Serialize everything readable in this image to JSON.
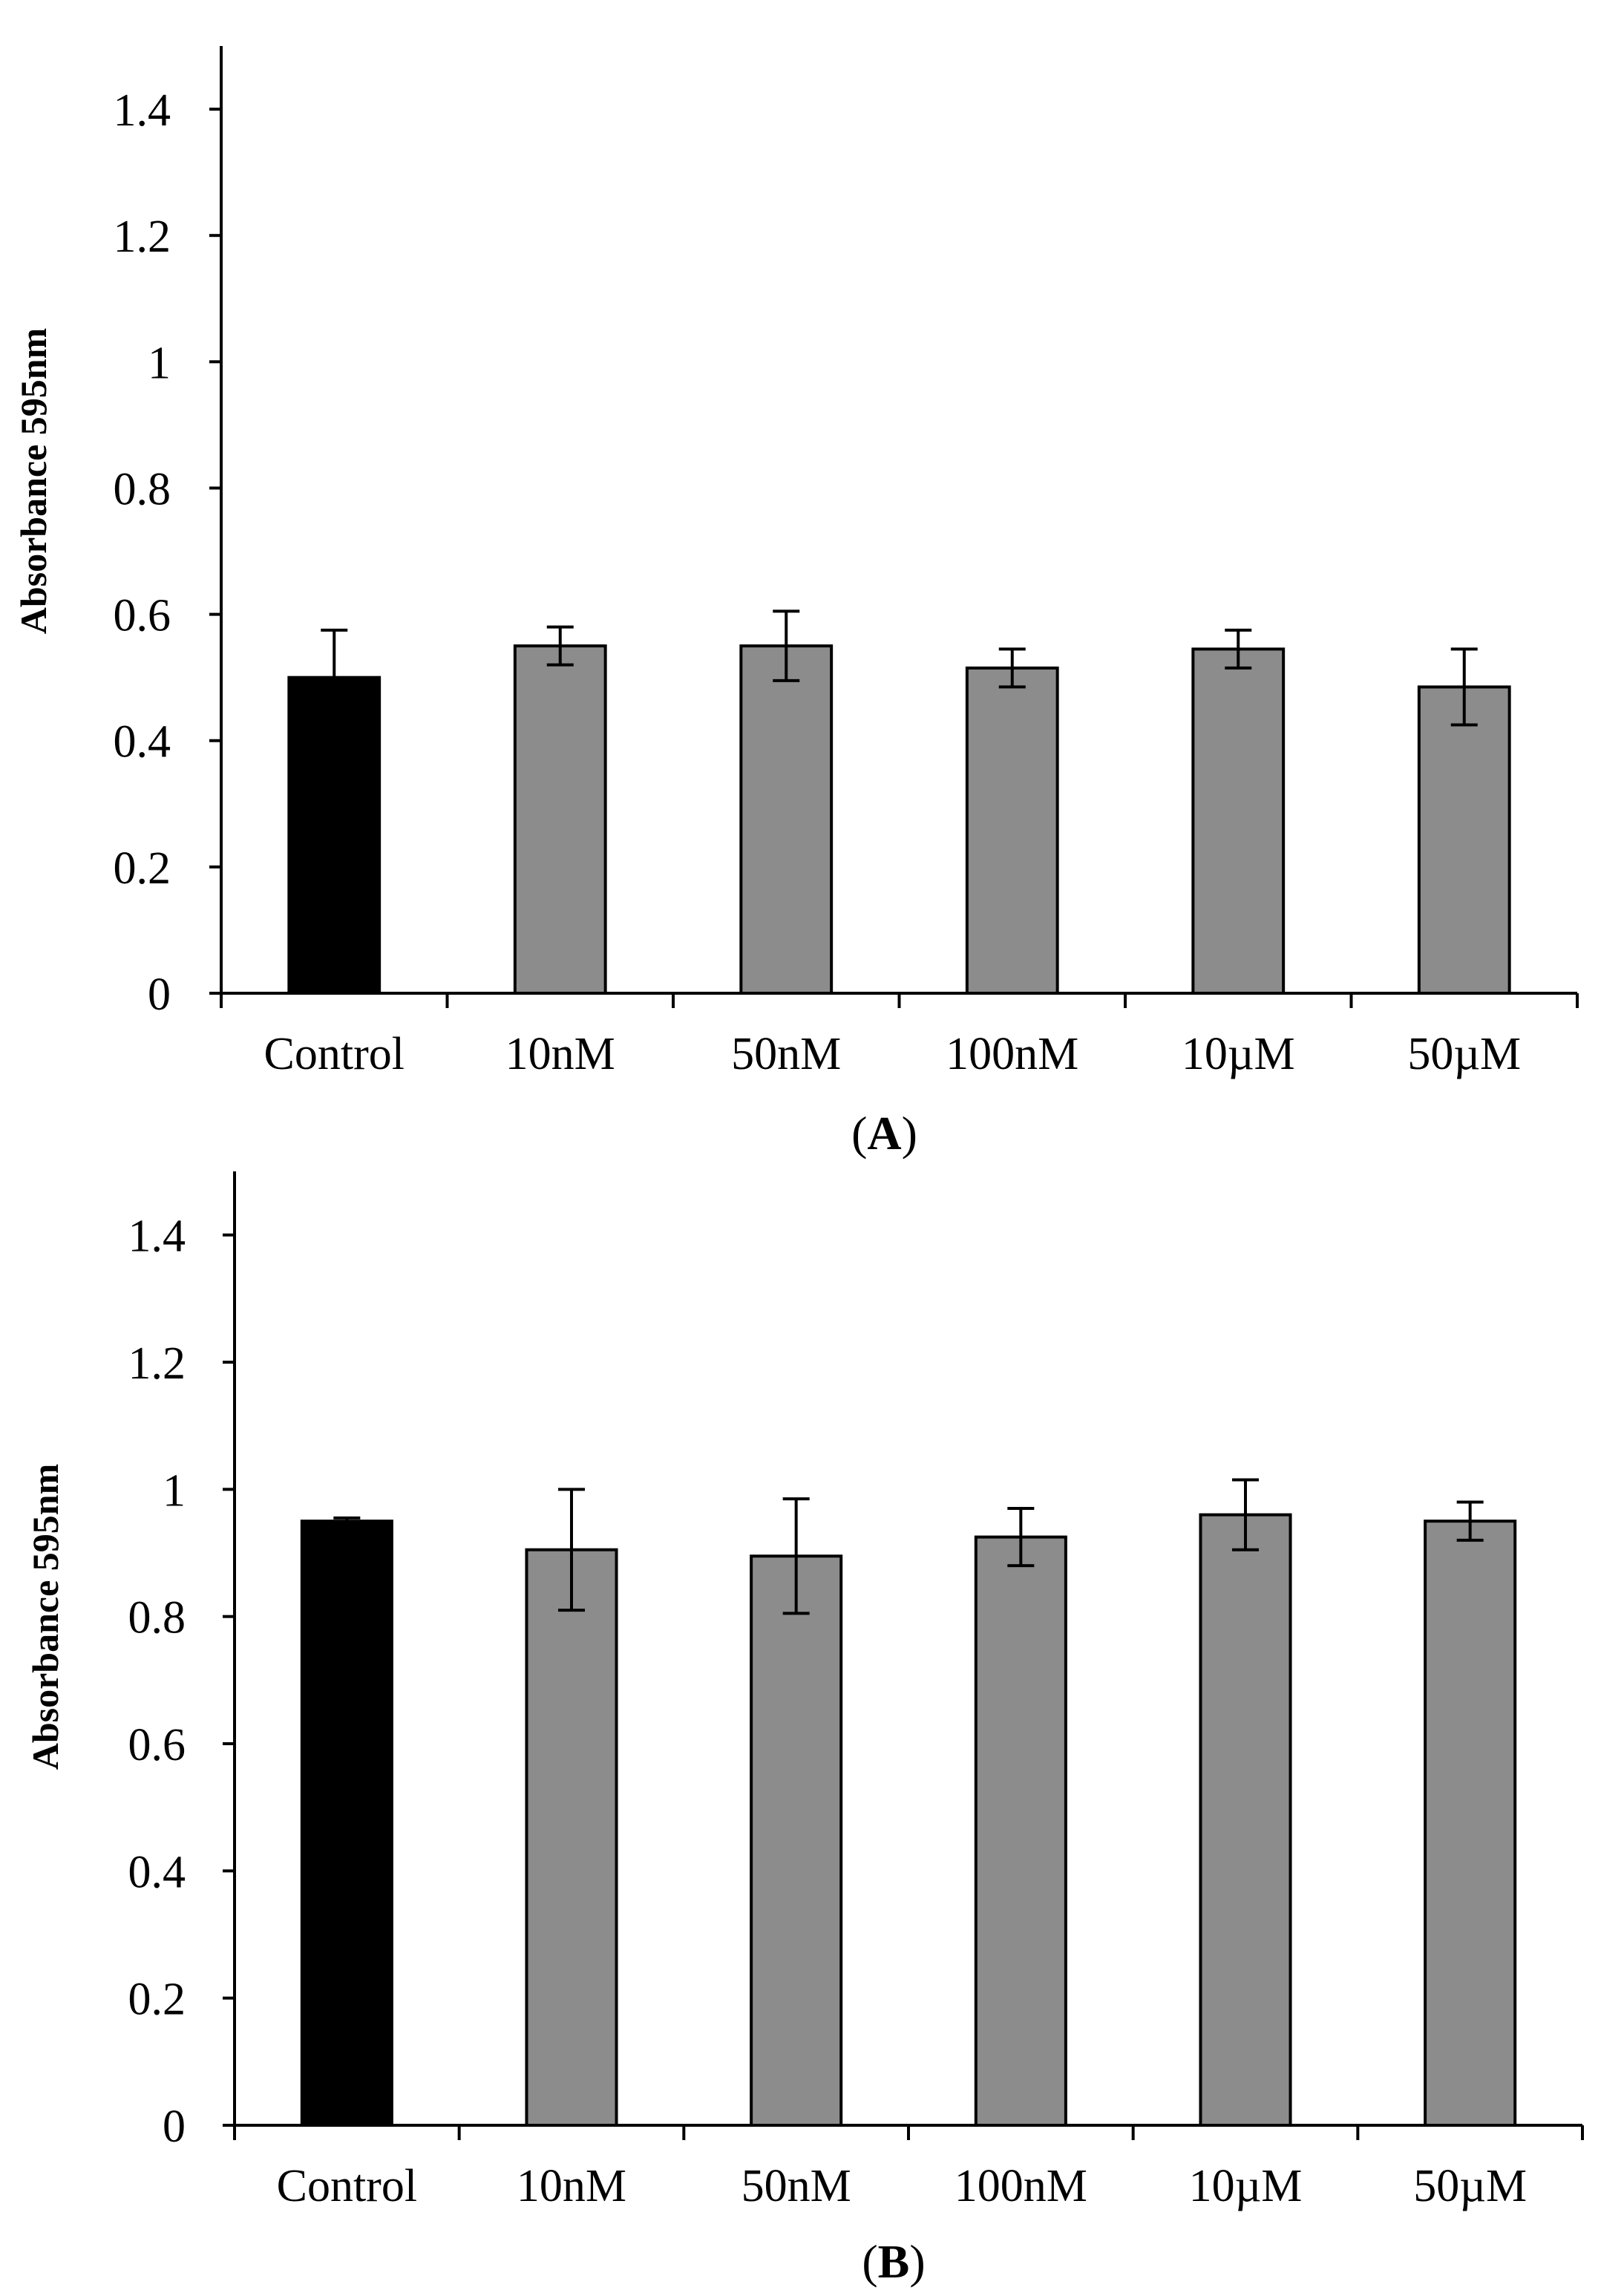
{
  "chart_data": [
    {
      "type": "bar",
      "panel": "A",
      "panel_label_open": "(",
      "panel_label_letter": "A",
      "panel_label_close": ")",
      "ylabel": "Absorbance 595nm",
      "xlabel": "",
      "ylim": [
        0,
        1.5
      ],
      "yticks": [
        0,
        0.2,
        0.4,
        0.6,
        0.8,
        1,
        1.2,
        1.4
      ],
      "ytick_labels": [
        "0",
        "0.2",
        "0.4",
        "0.6",
        "0.8",
        "1",
        "1.2",
        "1.4"
      ],
      "categories": [
        "Control",
        "10nM",
        "50nM",
        "100nM",
        "10µM",
        "50µM"
      ],
      "values": [
        0.5,
        0.55,
        0.55,
        0.515,
        0.545,
        0.485
      ],
      "errors": [
        0.075,
        0.03,
        0.055,
        0.03,
        0.03,
        0.06
      ],
      "colors": [
        "#000000",
        "#8c8c8c",
        "#8c8c8c",
        "#8c8c8c",
        "#8c8c8c",
        "#8c8c8c"
      ]
    },
    {
      "type": "bar",
      "panel": "B",
      "panel_label_open": "(",
      "panel_label_letter": "B",
      "panel_label_close": ")",
      "ylabel": "Absorbance 595nm",
      "xlabel": "",
      "ylim": [
        0,
        1.5
      ],
      "yticks": [
        0,
        0.2,
        0.4,
        0.6,
        0.8,
        1,
        1.2,
        1.4
      ],
      "ytick_labels": [
        "0",
        "0.2",
        "0.4",
        "0.6",
        "0.8",
        "1",
        "1.2",
        "1.4"
      ],
      "categories": [
        "Control",
        "10nM",
        "50nM",
        "100nM",
        "10µM",
        "50µM"
      ],
      "values": [
        0.95,
        0.905,
        0.895,
        0.925,
        0.96,
        0.95
      ],
      "errors": [
        0.005,
        0.095,
        0.09,
        0.045,
        0.055,
        0.03
      ],
      "colors": [
        "#000000",
        "#8c8c8c",
        "#8c8c8c",
        "#8c8c8c",
        "#8c8c8c",
        "#8c8c8c"
      ]
    }
  ]
}
